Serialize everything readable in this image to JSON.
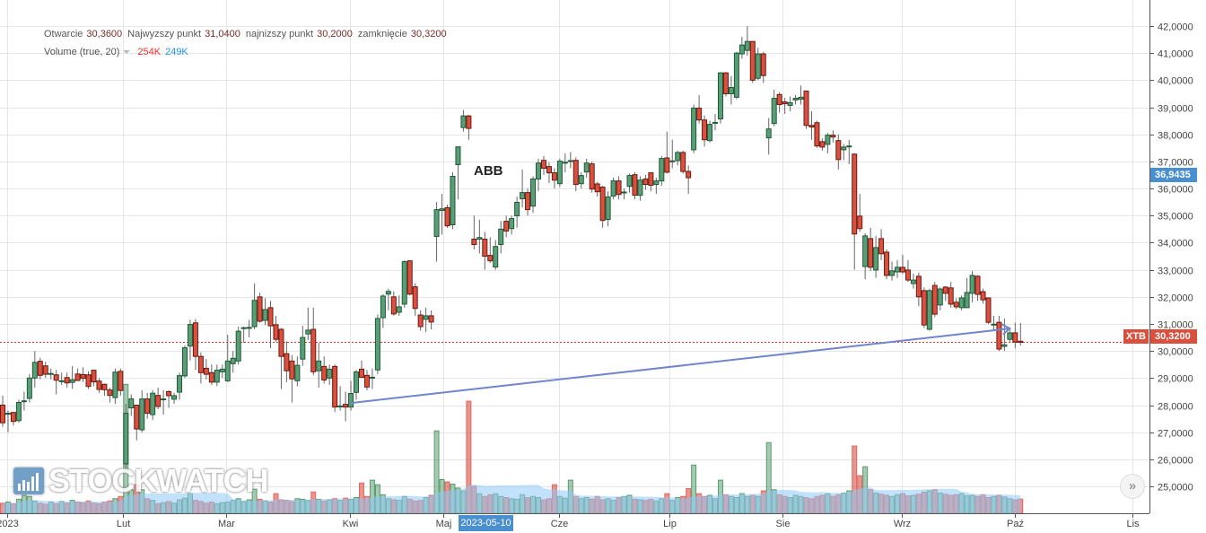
{
  "legend": {
    "open_label": "Otwarcie",
    "open": "30,3600",
    "high_label": "Najwyzszy punkt",
    "high": "31,0400",
    "low_label": "najnizszy punkt",
    "low": "30,2000",
    "close_label": "zamknięcie",
    "close": "30,3200",
    "volume_label": "Volume (true, 20)",
    "volume_current": "254K",
    "volume_average": "249K"
  },
  "symbol": "ABB",
  "price_tags": {
    "crosshair_price": "36,9435",
    "last_price": "30,3200",
    "last_price_source": "XTB"
  },
  "crosshair_date": "2023-05-10",
  "scroll_button_label": "»",
  "watermark": "STOCKWATCH",
  "colors": {
    "up": "#5a9e78",
    "down": "#d9503f",
    "volume_ma": "#90c8f5",
    "trendline": "#6f86cc",
    "last_price_line": "#e0392b",
    "crosshair_tag": "#4a8fd0"
  },
  "chart_data": {
    "type": "candlestick",
    "title": "ABB",
    "y_range": [
      25,
      42
    ],
    "y_ticks": [
      "42,0000",
      "41,0000",
      "40,0000",
      "39,0000",
      "38,0000",
      "37,0000",
      "36,0000",
      "35,0000",
      "34,0000",
      "33,0000",
      "32,0000",
      "31,0000",
      "30,0000",
      "29,0000",
      "28,0000",
      "27,0000",
      "26,0000",
      "25,0000"
    ],
    "x_ticks": [
      "2023",
      "Lut",
      "Mar",
      "Kwi",
      "Maj",
      "Cze",
      "Lip",
      "Sie",
      "Wrz",
      "Paź",
      "Lis"
    ],
    "grid": true,
    "last_price": 30.32,
    "trendline": {
      "from": {
        "candle": 65,
        "price": 28.08
      },
      "to": {
        "candle": 188,
        "price": 30.83
      }
    },
    "ohlc": [
      [
        28.0,
        28.35,
        27.2,
        27.35
      ],
      [
        27.7,
        27.8,
        27.0,
        27.7
      ],
      [
        27.73,
        27.75,
        27.25,
        27.4
      ],
      [
        27.43,
        28.2,
        27.35,
        28.1
      ],
      [
        28.16,
        28.5,
        27.8,
        28.16
      ],
      [
        28.25,
        29.15,
        28.1,
        29.0
      ],
      [
        29.0,
        30.0,
        28.65,
        29.58
      ],
      [
        29.62,
        29.75,
        28.95,
        29.1
      ],
      [
        29.45,
        29.6,
        29.0,
        29.14
      ],
      [
        29.17,
        29.35,
        28.95,
        29.17
      ],
      [
        29.12,
        29.3,
        28.4,
        28.92
      ],
      [
        28.9,
        29.2,
        28.75,
        28.9
      ],
      [
        29.02,
        29.2,
        28.65,
        28.82
      ],
      [
        28.84,
        29.45,
        28.6,
        28.94
      ],
      [
        29.15,
        29.35,
        28.9,
        28.91
      ],
      [
        29.13,
        29.4,
        28.85,
        28.99
      ],
      [
        29.12,
        29.25,
        28.6,
        28.69
      ],
      [
        29.29,
        29.3,
        28.7,
        28.86
      ],
      [
        28.89,
        29.0,
        28.45,
        28.58
      ],
      [
        28.77,
        28.8,
        28.35,
        28.57
      ],
      [
        28.56,
        28.65,
        28.1,
        28.36
      ],
      [
        28.28,
        29.35,
        28.05,
        29.22
      ],
      [
        29.25,
        29.35,
        28.35,
        28.54
      ],
      [
        25.83,
        28.05,
        25.5,
        27.7
      ],
      [
        27.9,
        28.4,
        27.6,
        28.23
      ],
      [
        28.0,
        28.0,
        26.7,
        27.12
      ],
      [
        27.09,
        28.55,
        27.0,
        28.23
      ],
      [
        28.23,
        28.45,
        27.5,
        27.7
      ],
      [
        27.65,
        28.55,
        27.45,
        28.44
      ],
      [
        28.36,
        28.65,
        27.85,
        27.95
      ],
      [
        28.23,
        28.55,
        27.65,
        28.23
      ],
      [
        28.5,
        28.55,
        27.9,
        28.35
      ],
      [
        28.22,
        28.45,
        28.05,
        28.35
      ],
      [
        28.48,
        29.2,
        28.2,
        29.09
      ],
      [
        29.08,
        30.2,
        29.0,
        30.12
      ],
      [
        30.18,
        31.15,
        29.65,
        30.98
      ],
      [
        31.04,
        31.18,
        29.3,
        29.8
      ],
      [
        29.8,
        29.95,
        28.8,
        29.2
      ],
      [
        29.36,
        29.7,
        28.95,
        29.14
      ],
      [
        29.2,
        29.5,
        28.75,
        28.85
      ],
      [
        28.85,
        29.5,
        28.7,
        29.29
      ],
      [
        29.23,
        29.5,
        29.0,
        29.33
      ],
      [
        28.9,
        30.6,
        28.85,
        29.63
      ],
      [
        29.53,
        30.0,
        29.2,
        29.73
      ],
      [
        29.63,
        30.9,
        29.5,
        30.73
      ],
      [
        30.86,
        30.9,
        30.3,
        30.86
      ],
      [
        30.87,
        31.15,
        30.5,
        30.87
      ],
      [
        30.9,
        32.5,
        30.8,
        31.87
      ],
      [
        32.0,
        32.15,
        31.05,
        31.1
      ],
      [
        31.13,
        31.95,
        30.95,
        31.53
      ],
      [
        31.6,
        31.85,
        30.1,
        30.93
      ],
      [
        30.97,
        31.3,
        30.35,
        30.43
      ],
      [
        30.8,
        30.85,
        28.6,
        29.8
      ],
      [
        29.9,
        30.35,
        28.85,
        29.27
      ],
      [
        29.63,
        29.85,
        28.1,
        28.97
      ],
      [
        28.9,
        29.8,
        28.7,
        29.47
      ],
      [
        29.7,
        30.93,
        29.45,
        30.5
      ],
      [
        30.63,
        31.6,
        30.4,
        30.77
      ],
      [
        30.8,
        31.6,
        29.1,
        29.23
      ],
      [
        29.27,
        30.3,
        28.65,
        29.63
      ],
      [
        29.43,
        29.8,
        28.8,
        28.93
      ],
      [
        29.0,
        29.5,
        28.75,
        29.33
      ],
      [
        29.43,
        29.5,
        27.75,
        27.93
      ],
      [
        27.97,
        28.7,
        27.8,
        27.97
      ],
      [
        28.03,
        28.5,
        27.4,
        27.93
      ],
      [
        27.93,
        28.9,
        27.8,
        28.43
      ],
      [
        28.47,
        29.3,
        28.2,
        29.23
      ],
      [
        29.33,
        29.65,
        29.0,
        29.03
      ],
      [
        29.1,
        29.3,
        28.55,
        28.67
      ],
      [
        29.03,
        29.35,
        28.6,
        29.03
      ],
      [
        29.3,
        31.35,
        29.15,
        31.2
      ],
      [
        31.23,
        32.1,
        30.85,
        32.03
      ],
      [
        32.1,
        32.3,
        31.5,
        32.2
      ],
      [
        32.0,
        32.2,
        31.3,
        31.37
      ],
      [
        31.43,
        32.05,
        31.3,
        31.63
      ],
      [
        31.73,
        33.35,
        31.6,
        33.3
      ],
      [
        33.33,
        33.35,
        32.05,
        32.1
      ],
      [
        32.37,
        32.5,
        31.3,
        31.57
      ],
      [
        31.33,
        31.5,
        30.75,
        30.9
      ],
      [
        31.17,
        31.6,
        30.7,
        31.3
      ],
      [
        31.3,
        31.5,
        30.8,
        31.07
      ],
      [
        34.23,
        35.5,
        33.3,
        35.22
      ],
      [
        35.19,
        35.8,
        34.3,
        35.25
      ],
      [
        35.29,
        35.4,
        34.55,
        34.62
      ],
      [
        34.66,
        36.6,
        34.5,
        36.45
      ],
      [
        36.88,
        37.55,
        35.6,
        37.54
      ],
      [
        38.25,
        38.9,
        38.1,
        38.68
      ],
      [
        38.68,
        38.72,
        37.8,
        38.22
      ],
      [
        34.13,
        35.0,
        33.75,
        33.93
      ],
      [
        34.13,
        34.85,
        33.6,
        34.19
      ],
      [
        34.13,
        34.4,
        33.0,
        33.5
      ],
      [
        33.53,
        34.2,
        33.25,
        33.33
      ],
      [
        33.1,
        34.1,
        33.0,
        33.86
      ],
      [
        33.93,
        34.8,
        33.6,
        34.5
      ],
      [
        34.79,
        35.0,
        34.2,
        34.43
      ],
      [
        34.52,
        35.0,
        34.3,
        34.89
      ],
      [
        34.99,
        35.7,
        34.55,
        35.49
      ],
      [
        35.62,
        36.7,
        35.3,
        35.85
      ],
      [
        35.85,
        36.0,
        35.0,
        35.22
      ],
      [
        35.35,
        36.45,
        35.1,
        36.35
      ],
      [
        36.35,
        37.1,
        35.9,
        36.94
      ],
      [
        37.04,
        37.2,
        36.5,
        36.75
      ],
      [
        36.81,
        36.97,
        36.2,
        36.58
      ],
      [
        36.58,
        36.75,
        36.0,
        36.31
      ],
      [
        36.18,
        37.1,
        36.05,
        37.01
      ],
      [
        36.97,
        37.3,
        36.6,
        36.97
      ],
      [
        37.03,
        37.35,
        36.75,
        37.03
      ],
      [
        37.04,
        37.15,
        35.9,
        36.15
      ],
      [
        36.18,
        36.6,
        36.0,
        36.48
      ],
      [
        36.61,
        37.1,
        36.4,
        36.94
      ],
      [
        36.91,
        37.0,
        35.85,
        35.98
      ],
      [
        36.17,
        36.25,
        35.7,
        35.88
      ],
      [
        36.05,
        36.1,
        34.55,
        34.82
      ],
      [
        34.86,
        35.9,
        34.6,
        35.69
      ],
      [
        35.72,
        36.4,
        35.6,
        36.28
      ],
      [
        36.28,
        36.45,
        35.6,
        35.78
      ],
      [
        35.87,
        36.0,
        35.6,
        35.87
      ],
      [
        36.08,
        36.55,
        35.85,
        36.48
      ],
      [
        36.51,
        36.6,
        35.6,
        35.75
      ],
      [
        35.75,
        36.45,
        35.55,
        36.31
      ],
      [
        36.35,
        36.5,
        35.95,
        36.15
      ],
      [
        36.58,
        36.6,
        35.9,
        36.12
      ],
      [
        36.15,
        36.4,
        35.8,
        36.28
      ],
      [
        36.28,
        37.2,
        36.1,
        37.11
      ],
      [
        37.13,
        38.1,
        36.55,
        36.6
      ],
      [
        37.02,
        37.8,
        36.75,
        37.02
      ],
      [
        37.03,
        37.4,
        36.85,
        37.33
      ],
      [
        37.33,
        37.4,
        36.55,
        36.63
      ],
      [
        36.63,
        36.85,
        35.8,
        36.4
      ],
      [
        37.43,
        39.1,
        37.3,
        38.97
      ],
      [
        38.97,
        39.45,
        38.4,
        38.53
      ],
      [
        38.53,
        38.7,
        37.55,
        37.8
      ],
      [
        37.77,
        38.5,
        37.7,
        38.37
      ],
      [
        38.44,
        38.75,
        38.15,
        38.44
      ],
      [
        38.57,
        40.3,
        38.4,
        40.27
      ],
      [
        40.27,
        40.3,
        39.4,
        39.5
      ],
      [
        39.5,
        40.15,
        39.1,
        39.73
      ],
      [
        39.37,
        41.05,
        39.3,
        41.0
      ],
      [
        40.97,
        41.6,
        40.8,
        41.3
      ],
      [
        41.1,
        42.0,
        40.9,
        41.43
      ],
      [
        41.43,
        41.45,
        39.9,
        40.0
      ],
      [
        40.07,
        41.2,
        40.0,
        40.97
      ],
      [
        40.97,
        41.05,
        39.9,
        40.17
      ],
      [
        37.87,
        38.6,
        37.25,
        38.2
      ],
      [
        38.4,
        39.65,
        38.3,
        39.33
      ],
      [
        39.47,
        39.55,
        38.8,
        39.1
      ],
      [
        39.2,
        39.35,
        38.75,
        39.13
      ],
      [
        39.07,
        39.4,
        38.85,
        39.17
      ],
      [
        39.27,
        39.45,
        39.1,
        39.33
      ],
      [
        39.3,
        39.8,
        39.1,
        39.37
      ],
      [
        39.6,
        39.62,
        38.2,
        38.33
      ],
      [
        38.33,
        38.85,
        37.8,
        38.27
      ],
      [
        38.43,
        38.5,
        37.5,
        37.57
      ],
      [
        37.73,
        37.85,
        37.4,
        37.53
      ],
      [
        37.63,
        38.05,
        37.3,
        37.97
      ],
      [
        37.97,
        38.15,
        37.7,
        37.9
      ],
      [
        37.77,
        38.0,
        36.7,
        37.07
      ],
      [
        37.43,
        37.65,
        37.05,
        37.53
      ],
      [
        37.57,
        37.8,
        36.9,
        37.57
      ],
      [
        37.27,
        37.3,
        33.0,
        34.32
      ],
      [
        34.98,
        35.8,
        34.4,
        34.52
      ],
      [
        33.12,
        34.35,
        32.65,
        34.25
      ],
      [
        34.15,
        34.55,
        32.95,
        33.09
      ],
      [
        32.99,
        34.25,
        32.7,
        33.82
      ],
      [
        34.15,
        34.5,
        33.35,
        33.59
      ],
      [
        33.65,
        33.75,
        32.65,
        32.79
      ],
      [
        32.79,
        33.3,
        32.6,
        32.96
      ],
      [
        32.92,
        33.35,
        32.7,
        33.09
      ],
      [
        33.09,
        33.55,
        32.85,
        32.92
      ],
      [
        32.99,
        33.35,
        32.55,
        32.62
      ],
      [
        32.49,
        32.85,
        32.3,
        32.62
      ],
      [
        32.76,
        32.9,
        31.65,
        32.0
      ],
      [
        32.23,
        32.35,
        30.85,
        30.96
      ],
      [
        30.8,
        32.3,
        30.75,
        32.23
      ],
      [
        32.42,
        32.55,
        31.25,
        31.36
      ],
      [
        31.7,
        32.35,
        31.5,
        32.29
      ],
      [
        32.36,
        32.4,
        31.85,
        32.13
      ],
      [
        32.33,
        32.55,
        31.6,
        31.73
      ],
      [
        31.8,
        31.95,
        31.55,
        31.63
      ],
      [
        31.6,
        32.05,
        31.5,
        31.96
      ],
      [
        31.6,
        32.7,
        31.6,
        32.16
      ],
      [
        32.13,
        32.95,
        31.8,
        32.79
      ],
      [
        32.76,
        32.8,
        31.85,
        32.09
      ],
      [
        32.19,
        32.3,
        31.75,
        31.89
      ],
      [
        31.96,
        31.96,
        31.0,
        31.06
      ],
      [
        30.99,
        31.3,
        30.75,
        30.99
      ],
      [
        31.06,
        31.3,
        30.0,
        30.07
      ],
      [
        30.17,
        31.2,
        30.0,
        30.23
      ],
      [
        30.43,
        30.8,
        30.3,
        30.67
      ],
      [
        30.67,
        31.05,
        30.1,
        30.33
      ],
      [
        30.36,
        31.04,
        30.2,
        30.32
      ]
    ],
    "volume_k": [
      180,
      200,
      170,
      250,
      320,
      300,
      220,
      180,
      160,
      200,
      170,
      210,
      180,
      230,
      200,
      190,
      220,
      180,
      170,
      200,
      220,
      260,
      300,
      2300,
      420,
      510,
      420,
      260,
      230,
      170,
      190,
      210,
      180,
      240,
      270,
      350,
      230,
      210,
      180,
      200,
      170,
      190,
      200,
      230,
      260,
      210,
      240,
      430,
      250,
      220,
      200,
      350,
      240,
      230,
      210,
      260,
      250,
      230,
      380,
      250,
      220,
      240,
      260,
      230,
      270,
      250,
      280,
      540,
      300,
      590,
      510,
      330,
      260,
      240,
      230,
      300,
      250,
      220,
      230,
      280,
      320,
      1470,
      600,
      560,
      520,
      450,
      400,
      2000,
      480,
      350,
      300,
      330,
      350,
      300,
      280,
      260,
      250,
      330,
      280,
      300,
      280,
      240,
      260,
      510,
      300,
      270,
      590,
      300,
      260,
      280,
      250,
      300,
      240,
      260,
      230,
      280,
      300,
      320,
      250,
      240,
      230,
      250,
      220,
      260,
      350,
      230,
      280,
      300,
      440,
      860,
      350,
      300,
      320,
      260,
      590,
      330,
      300,
      280,
      350,
      300,
      320,
      300,
      400,
      1260,
      420,
      330,
      300,
      280,
      320,
      300,
      280,
      260,
      300,
      320,
      350,
      300,
      330,
      360,
      400,
      1200,
      670,
      830,
      420,
      360,
      340,
      320,
      300,
      330,
      350,
      310,
      320,
      340,
      380,
      400,
      420,
      360,
      340,
      320,
      330,
      350,
      310,
      320,
      300,
      330,
      280,
      300,
      320,
      290,
      260,
      240,
      254
    ],
    "volume_ma_period": 20
  }
}
